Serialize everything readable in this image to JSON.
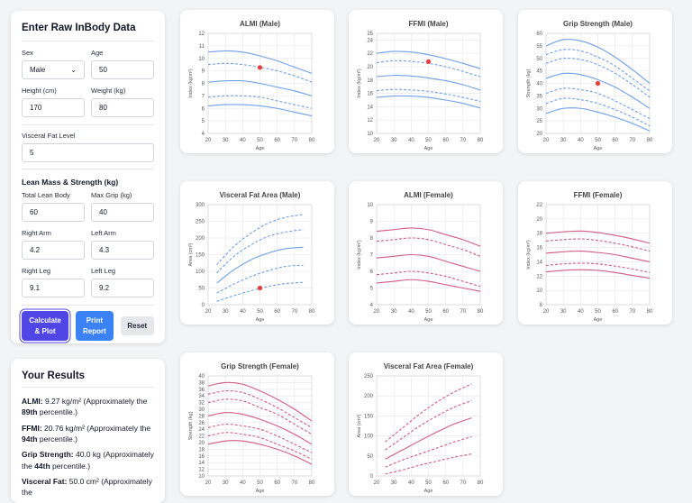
{
  "input_panel": {
    "title": "Enter Raw InBody Data",
    "sex": {
      "label": "Sex",
      "value": "Male"
    },
    "age": {
      "label": "Age",
      "value": "50"
    },
    "height": {
      "label": "Height (cm)",
      "value": "170"
    },
    "weight": {
      "label": "Weight (kg)",
      "value": "80"
    },
    "visceral": {
      "label": "Visceral Fat Level",
      "value": "5"
    },
    "lean_title": "Lean Mass & Strength (kg)",
    "total_lean": {
      "label": "Total Lean Body",
      "value": "60"
    },
    "max_grip": {
      "label": "Max Grip (kg)",
      "value": "40"
    },
    "right_arm": {
      "label": "Right Arm",
      "value": "4.2"
    },
    "left_arm": {
      "label": "Left Arm",
      "value": "4.3"
    },
    "right_leg": {
      "label": "Right Leg",
      "value": "9.1"
    },
    "left_leg": {
      "label": "Left Leg",
      "value": "9.2"
    },
    "buttons": {
      "calc_line1": "Calculate",
      "calc_line2": "& Plot",
      "print_line1": "Print",
      "print_line2": "Report",
      "reset": "Reset"
    }
  },
  "results": {
    "title": "Your Results",
    "almi": {
      "label": "ALMI:",
      "pre": " 9.27 kg/m² (Approximately the ",
      "pct": "89th",
      "post": " percentile.)"
    },
    "ffmi": {
      "label": "FFMI:",
      "pre": " 20.76 kg/m² (Approximately the ",
      "pct": "94th",
      "post": " percentile.)"
    },
    "grip": {
      "label": "Grip Strength:",
      "pre": " 40.0 kg (Approximately the ",
      "pct": "44th",
      "post": " percentile.)"
    },
    "vfa": {
      "label": "Visceral Fat:",
      "pre": " 50.0 cm² (Approximately the ",
      "pct": "",
      "post": ""
    }
  },
  "colors": {
    "male": "#6f9fe8",
    "female": "#d05c84",
    "marker": "#e53e3e",
    "grid": "#e5e5e5"
  },
  "chart_data": [
    {
      "type": "line",
      "title": "ALMI (Male)",
      "xlabel": "Age",
      "ylabel": "Index (kg/m²)",
      "xlim": [
        20,
        80
      ],
      "ylim": [
        4,
        12
      ],
      "xticks": [
        20,
        30,
        40,
        50,
        60,
        70,
        80
      ],
      "yticks": [
        4,
        5,
        6,
        7,
        8,
        9,
        10,
        11,
        12
      ],
      "color": "male",
      "x": [
        20,
        30,
        40,
        50,
        60,
        70,
        80
      ],
      "series": [
        {
          "style": "solid",
          "values": [
            10.5,
            10.6,
            10.5,
            10.2,
            9.8,
            9.3,
            8.8
          ]
        },
        {
          "style": "dashed",
          "values": [
            9.5,
            9.6,
            9.5,
            9.3,
            9.0,
            8.6,
            8.1
          ]
        },
        {
          "style": "solid",
          "values": [
            8.1,
            8.2,
            8.2,
            8.0,
            7.7,
            7.4,
            7.0
          ]
        },
        {
          "style": "dashed",
          "values": [
            6.9,
            7.0,
            7.0,
            6.9,
            6.6,
            6.3,
            6.0
          ]
        },
        {
          "style": "solid",
          "values": [
            6.2,
            6.3,
            6.3,
            6.2,
            6.0,
            5.7,
            5.4
          ]
        }
      ],
      "marker": {
        "x": 50,
        "y": 9.27
      }
    },
    {
      "type": "line",
      "title": "FFMI (Male)",
      "xlabel": "Age",
      "ylabel": "Index (kg/m²)",
      "xlim": [
        20,
        80
      ],
      "ylim": [
        10,
        25
      ],
      "xticks": [
        20,
        30,
        40,
        50,
        60,
        70,
        80
      ],
      "yticks": [
        10,
        12,
        14,
        16,
        18,
        20,
        22,
        24,
        25
      ],
      "color": "male",
      "x": [
        20,
        30,
        40,
        50,
        60,
        70,
        80
      ],
      "series": [
        {
          "style": "solid",
          "values": [
            22.0,
            22.3,
            22.2,
            21.8,
            21.2,
            20.5,
            19.7
          ]
        },
        {
          "style": "dashed",
          "values": [
            20.6,
            20.9,
            20.8,
            20.5,
            20.0,
            19.3,
            18.5
          ]
        },
        {
          "style": "solid",
          "values": [
            18.5,
            18.7,
            18.6,
            18.3,
            17.9,
            17.3,
            16.5
          ]
        },
        {
          "style": "dashed",
          "values": [
            16.4,
            16.6,
            16.5,
            16.3,
            15.9,
            15.4,
            14.8
          ]
        },
        {
          "style": "solid",
          "values": [
            15.4,
            15.6,
            15.6,
            15.4,
            15.0,
            14.5,
            13.8
          ]
        }
      ],
      "marker": {
        "x": 50,
        "y": 20.76
      }
    },
    {
      "type": "line",
      "title": "Grip Strength (Male)",
      "xlabel": "Age",
      "ylabel": "Strength (kg)",
      "xlim": [
        20,
        80
      ],
      "ylim": [
        20,
        60
      ],
      "xticks": [
        20,
        30,
        40,
        50,
        60,
        70,
        80
      ],
      "yticks": [
        20,
        25,
        30,
        35,
        40,
        45,
        50,
        55,
        60
      ],
      "color": "male",
      "x": [
        20,
        30,
        40,
        50,
        60,
        70,
        80
      ],
      "series": [
        {
          "style": "solid",
          "values": [
            55,
            57.5,
            57,
            54.5,
            50.5,
            45.5,
            40
          ]
        },
        {
          "style": "dashed",
          "values": [
            51.5,
            53.5,
            53,
            50.5,
            47,
            42,
            37
          ]
        },
        {
          "style": "dashed",
          "values": [
            48,
            50,
            49.5,
            47.5,
            44,
            39.5,
            34.5
          ]
        },
        {
          "style": "solid",
          "values": [
            42,
            44,
            43.5,
            41.5,
            38.5,
            34.5,
            30
          ]
        },
        {
          "style": "dashed",
          "values": [
            36,
            38,
            37.5,
            36,
            33,
            29.5,
            26
          ]
        },
        {
          "style": "dashed",
          "values": [
            32,
            34,
            33.5,
            32,
            29.5,
            26.5,
            23
          ]
        },
        {
          "style": "solid",
          "values": [
            28,
            30,
            30,
            28.5,
            26.5,
            24,
            21
          ]
        }
      ],
      "marker": {
        "x": 50,
        "y": 40
      }
    },
    {
      "type": "line",
      "title": "Visceral Fat Area (Male)",
      "xlabel": "Age",
      "ylabel": "Area (cm²)",
      "xlim": [
        20,
        80
      ],
      "ylim": [
        0,
        300
      ],
      "xticks": [
        20,
        30,
        40,
        50,
        60,
        70,
        80
      ],
      "yticks": [
        0,
        50,
        100,
        150,
        200,
        250,
        300
      ],
      "color": "male",
      "x": [
        25,
        35,
        45,
        55,
        65,
        75
      ],
      "series": [
        {
          "style": "dashed",
          "values": [
            120,
            175,
            215,
            245,
            262,
            270
          ]
        },
        {
          "style": "dashed",
          "values": [
            95,
            145,
            180,
            205,
            218,
            225
          ]
        },
        {
          "style": "solid",
          "values": [
            65,
            105,
            135,
            155,
            168,
            172
          ]
        },
        {
          "style": "dashed",
          "values": [
            35,
            62,
            85,
            102,
            115,
            118
          ]
        },
        {
          "style": "dashed",
          "values": [
            10,
            27,
            42,
            55,
            63,
            67
          ]
        }
      ],
      "marker": {
        "x": 50,
        "y": 50
      }
    },
    {
      "type": "line",
      "title": "ALMI (Female)",
      "xlabel": "Age",
      "ylabel": "Index (kg/m²)",
      "xlim": [
        20,
        80
      ],
      "ylim": [
        4,
        10
      ],
      "xticks": [
        20,
        30,
        40,
        50,
        60,
        70,
        80
      ],
      "yticks": [
        4,
        5,
        6,
        7,
        8,
        9,
        10
      ],
      "color": "female",
      "x": [
        20,
        30,
        40,
        50,
        60,
        70,
        80
      ],
      "series": [
        {
          "style": "solid",
          "values": [
            8.4,
            8.5,
            8.6,
            8.5,
            8.2,
            7.9,
            7.5
          ]
        },
        {
          "style": "dashed",
          "values": [
            7.8,
            7.9,
            8.0,
            7.9,
            7.6,
            7.3,
            6.9
          ]
        },
        {
          "style": "solid",
          "values": [
            6.8,
            6.9,
            7.0,
            6.9,
            6.6,
            6.3,
            6.0
          ]
        },
        {
          "style": "dashed",
          "values": [
            5.8,
            5.9,
            6.0,
            5.9,
            5.7,
            5.4,
            5.1
          ]
        },
        {
          "style": "solid",
          "values": [
            5.3,
            5.4,
            5.5,
            5.4,
            5.2,
            5.0,
            4.8
          ]
        }
      ]
    },
    {
      "type": "line",
      "title": "FFMI (Female)",
      "xlabel": "Age",
      "ylabel": "Index (kg/m²)",
      "xlim": [
        20,
        80
      ],
      "ylim": [
        8,
        22
      ],
      "xticks": [
        20,
        30,
        40,
        50,
        60,
        70,
        80
      ],
      "yticks": [
        8,
        10,
        12,
        14,
        16,
        18,
        20,
        22
      ],
      "color": "female",
      "x": [
        20,
        30,
        40,
        50,
        60,
        70,
        80
      ],
      "series": [
        {
          "style": "solid",
          "values": [
            18.0,
            18.2,
            18.3,
            18.1,
            17.7,
            17.2,
            16.6
          ]
        },
        {
          "style": "dashed",
          "values": [
            16.9,
            17.1,
            17.2,
            17.0,
            16.6,
            16.1,
            15.5
          ]
        },
        {
          "style": "solid",
          "values": [
            15.2,
            15.4,
            15.5,
            15.3,
            15.0,
            14.5,
            14.0
          ]
        },
        {
          "style": "dashed",
          "values": [
            13.5,
            13.7,
            13.8,
            13.7,
            13.4,
            13.0,
            12.5
          ]
        },
        {
          "style": "solid",
          "values": [
            12.6,
            12.8,
            12.9,
            12.8,
            12.5,
            12.1,
            11.7
          ]
        }
      ]
    },
    {
      "type": "line",
      "title": "Grip Strength (Female)",
      "xlabel": "Age",
      "ylabel": "Strength (kg)",
      "xlim": [
        20,
        80
      ],
      "ylim": [
        10,
        40
      ],
      "xticks": [
        20,
        30,
        40,
        50,
        60,
        70,
        80
      ],
      "yticks": [
        10,
        12,
        14,
        16,
        18,
        20,
        22,
        24,
        26,
        28,
        30,
        32,
        34,
        36,
        38,
        40
      ],
      "color": "female",
      "x": [
        20,
        30,
        40,
        50,
        60,
        70,
        80
      ],
      "series": [
        {
          "style": "solid",
          "values": [
            37,
            38,
            37.5,
            35.5,
            33,
            30,
            26.5
          ]
        },
        {
          "style": "dashed",
          "values": [
            34.5,
            35.5,
            35,
            33,
            30.5,
            27.5,
            24.5
          ]
        },
        {
          "style": "dashed",
          "values": [
            32,
            33,
            32.5,
            30.5,
            28.5,
            25.5,
            22.5
          ]
        },
        {
          "style": "solid",
          "values": [
            28,
            29,
            28.5,
            27,
            25,
            22.5,
            19.5
          ]
        },
        {
          "style": "dashed",
          "values": [
            24.5,
            25.5,
            25,
            24,
            22,
            19.5,
            17
          ]
        },
        {
          "style": "dashed",
          "values": [
            22,
            23,
            22.5,
            21.5,
            19.5,
            17.5,
            15
          ]
        },
        {
          "style": "solid",
          "values": [
            19.5,
            20.5,
            20.5,
            19.5,
            18,
            16,
            13.5
          ]
        }
      ]
    },
    {
      "type": "line",
      "title": "Visceral Fat Area (Female)",
      "xlabel": "Age",
      "ylabel": "Area (cm²)",
      "xlim": [
        20,
        80
      ],
      "ylim": [
        0,
        250
      ],
      "xticks": [
        20,
        30,
        40,
        50,
        60,
        70,
        80
      ],
      "yticks": [
        0,
        50,
        100,
        150,
        200,
        250
      ],
      "color": "female",
      "x": [
        25,
        35,
        45,
        55,
        65,
        75
      ],
      "series": [
        {
          "style": "dashed",
          "values": [
            85,
            120,
            155,
            185,
            210,
            230
          ]
        },
        {
          "style": "dashed",
          "values": [
            65,
            95,
            125,
            150,
            172,
            188
          ]
        },
        {
          "style": "solid",
          "values": [
            42,
            65,
            88,
            110,
            130,
            145
          ]
        },
        {
          "style": "dashed",
          "values": [
            22,
            40,
            55,
            70,
            85,
            98
          ]
        },
        {
          "style": "dashed",
          "values": [
            5,
            15,
            27,
            37,
            47,
            55
          ]
        }
      ]
    }
  ]
}
